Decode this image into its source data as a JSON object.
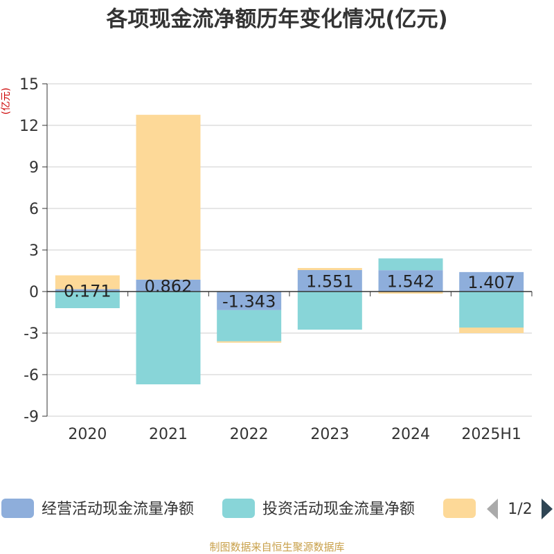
{
  "chart_data": {
    "type": "bar",
    "stacked": true,
    "title": "各项现金流净额历年变化情况(亿元)",
    "ylabel": "(亿元)",
    "ylim": [
      -9,
      15
    ],
    "yticks": [
      15,
      12,
      9,
      6,
      3,
      0,
      -3,
      -6,
      -9
    ],
    "categories": [
      "2020",
      "2021",
      "2022",
      "2023",
      "2024",
      "2025H1"
    ],
    "series": [
      {
        "name": "经营活动现金流量净额",
        "color": "#8eaedb",
        "values": [
          0.171,
          0.862,
          -1.343,
          1.551,
          1.542,
          1.407
        ],
        "labels": [
          "0.171",
          "0.862",
          "-1.343",
          "1.551",
          "1.542",
          "1.407"
        ]
      },
      {
        "name": "投资活动现金流量净额",
        "color": "#88d5d8",
        "values": [
          -1.2,
          -6.7,
          -2.25,
          -2.75,
          0.85,
          -2.6
        ]
      },
      {
        "name": "",
        "color": "#fdd998",
        "values": [
          1.0,
          11.9,
          -0.1,
          0.15,
          -0.15,
          -0.4
        ]
      }
    ],
    "legend": {
      "position": "bottom",
      "page": "1/2"
    },
    "grid": true
  },
  "source_note": "制图数据来自恒生聚源数据库"
}
